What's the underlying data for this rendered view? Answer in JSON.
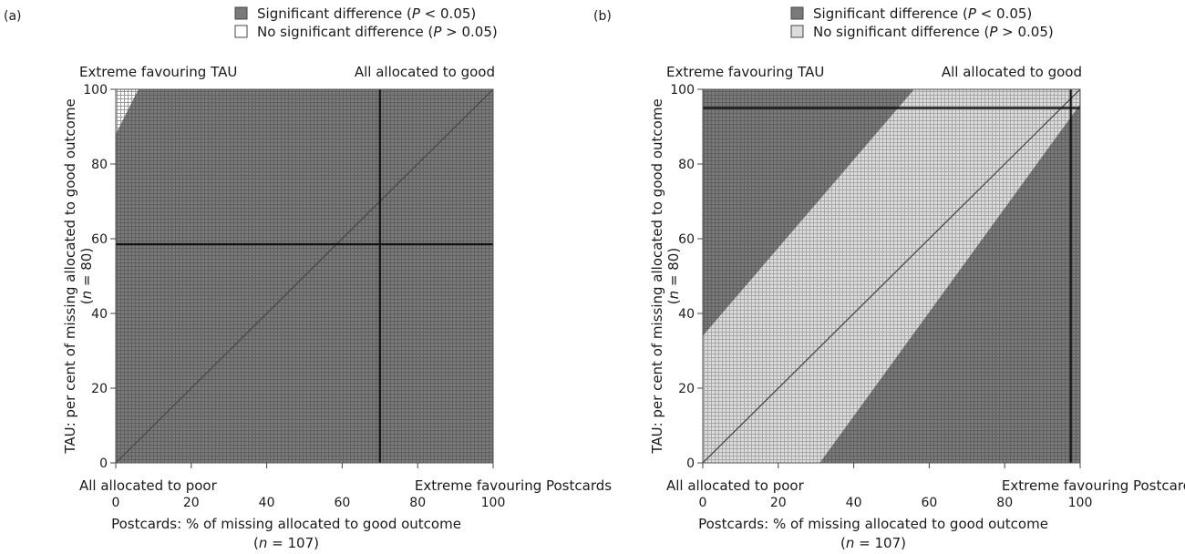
{
  "chart_data": [
    {
      "panel": "(a)",
      "type": "heatmap",
      "legend": [
        {
          "label_pre": "Significant difference (",
          "label_var": "P",
          "label_post": " < 0.05)",
          "color": "#7a7a7a"
        },
        {
          "label_pre": "No significant difference (",
          "label_var": "P",
          "label_post": " > 0.05)",
          "color": "#ffffff"
        }
      ],
      "corner_labels": {
        "top_left": "Extreme favouring TAU",
        "top_right": "All allocated to good",
        "bottom_left": "All allocated to poor",
        "bottom_right": "Extreme favouring Postcards"
      },
      "xlabel": "Postcards: % of missing allocated to good outcome",
      "xlabel_n": "(n = 107)",
      "ylabel": "TAU: per cent of missing allocated to good outcome",
      "ylabel_n": "(n = 80)",
      "xlim": [
        0,
        100
      ],
      "ylim": [
        0,
        100
      ],
      "xticks": [
        0,
        20,
        40,
        60,
        80,
        100
      ],
      "yticks": [
        0,
        20,
        40,
        60,
        80,
        100
      ],
      "regions": [
        {
          "significant": true
        },
        {
          "significant": false,
          "polygon": [
            [
              0,
              88
            ],
            [
              0,
              100
            ],
            [
              6,
              100
            ]
          ]
        }
      ],
      "observed_point": {
        "x": 70,
        "y": 58.5
      },
      "diagonal": true,
      "significant_color": "#7a7a7a",
      "nonsignificant_color": "#ffffff"
    },
    {
      "panel": "(b)",
      "type": "heatmap",
      "legend": [
        {
          "label_pre": "Significant difference (",
          "label_var": "P",
          "label_post": " < 0.05)",
          "color": "#7a7a7a"
        },
        {
          "label_pre": "No significant difference (",
          "label_var": "P",
          "label_post": " > 0.05)",
          "color": "#dcdcdc"
        }
      ],
      "corner_labels": {
        "top_left": "Extreme favouring TAU",
        "top_right": "All allocated to good",
        "bottom_left": "All allocated to poor",
        "bottom_right": "Extreme favouring Postcards"
      },
      "xlabel": "Postcards: % of missing allocated to good outcome",
      "xlabel_n": "(n = 107)",
      "ylabel": "TAU: per cent of missing allocated to good outcome",
      "ylabel_n": "(n = 80)",
      "xlim": [
        0,
        100
      ],
      "ylim": [
        0,
        100
      ],
      "xticks": [
        0,
        20,
        40,
        60,
        80,
        100
      ],
      "yticks": [
        0,
        20,
        40,
        60,
        80,
        100
      ],
      "regions": [
        {
          "significant": true
        },
        {
          "significant": false,
          "polygon": [
            [
              0,
              34
            ],
            [
              0,
              0
            ],
            [
              31,
              0
            ],
            [
              100,
              96
            ],
            [
              100,
              100
            ],
            [
              56,
              100
            ]
          ]
        }
      ],
      "observed_point": {
        "x": 97.5,
        "y": 95
      },
      "diagonal": true,
      "significant_color": "#7a7a7a",
      "nonsignificant_color": "#dcdcdc"
    }
  ]
}
